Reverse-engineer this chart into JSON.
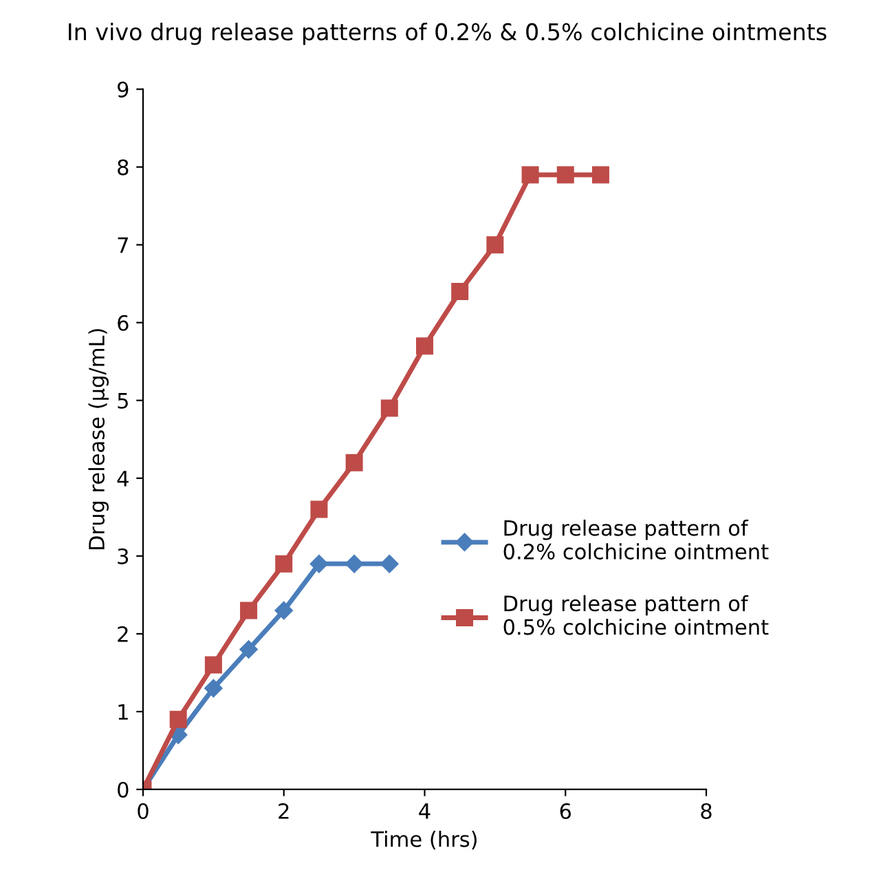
{
  "chart_data": {
    "type": "line",
    "title": "In vivo drug release patterns of 0.2% & 0.5% colchicine ointments",
    "xlabel": "Time (hrs)",
    "ylabel": "Drug release (µg/mL)",
    "xlim": [
      0,
      8
    ],
    "xticks": [
      0,
      2,
      4,
      6,
      8
    ],
    "ylim": [
      0,
      9
    ],
    "yticks": [
      0,
      1,
      2,
      3,
      4,
      5,
      6,
      7,
      8,
      9
    ],
    "grid": false,
    "legend": "right",
    "series": [
      {
        "name": "Drug release pattern of\n0.2% colchicine ointment",
        "color": "#4a7ebb",
        "marker": "diamond",
        "x": [
          0,
          0.5,
          1,
          1.5,
          2,
          2.5,
          3,
          3.5
        ],
        "values": [
          0,
          0.7,
          1.3,
          1.8,
          2.3,
          2.9,
          2.9,
          2.9
        ]
      },
      {
        "name": "Drug release pattern of\n0.5% colchicine ointment",
        "color": "#be4b48",
        "marker": "square",
        "x": [
          0,
          0.5,
          1,
          1.5,
          2,
          2.5,
          3,
          3.5,
          4,
          4.5,
          5,
          5.5,
          6,
          6.5
        ],
        "values": [
          0,
          0.9,
          1.6,
          2.3,
          2.9,
          3.6,
          4.2,
          4.9,
          5.7,
          6.4,
          7.0,
          7.9,
          7.9,
          7.9
        ]
      }
    ]
  }
}
